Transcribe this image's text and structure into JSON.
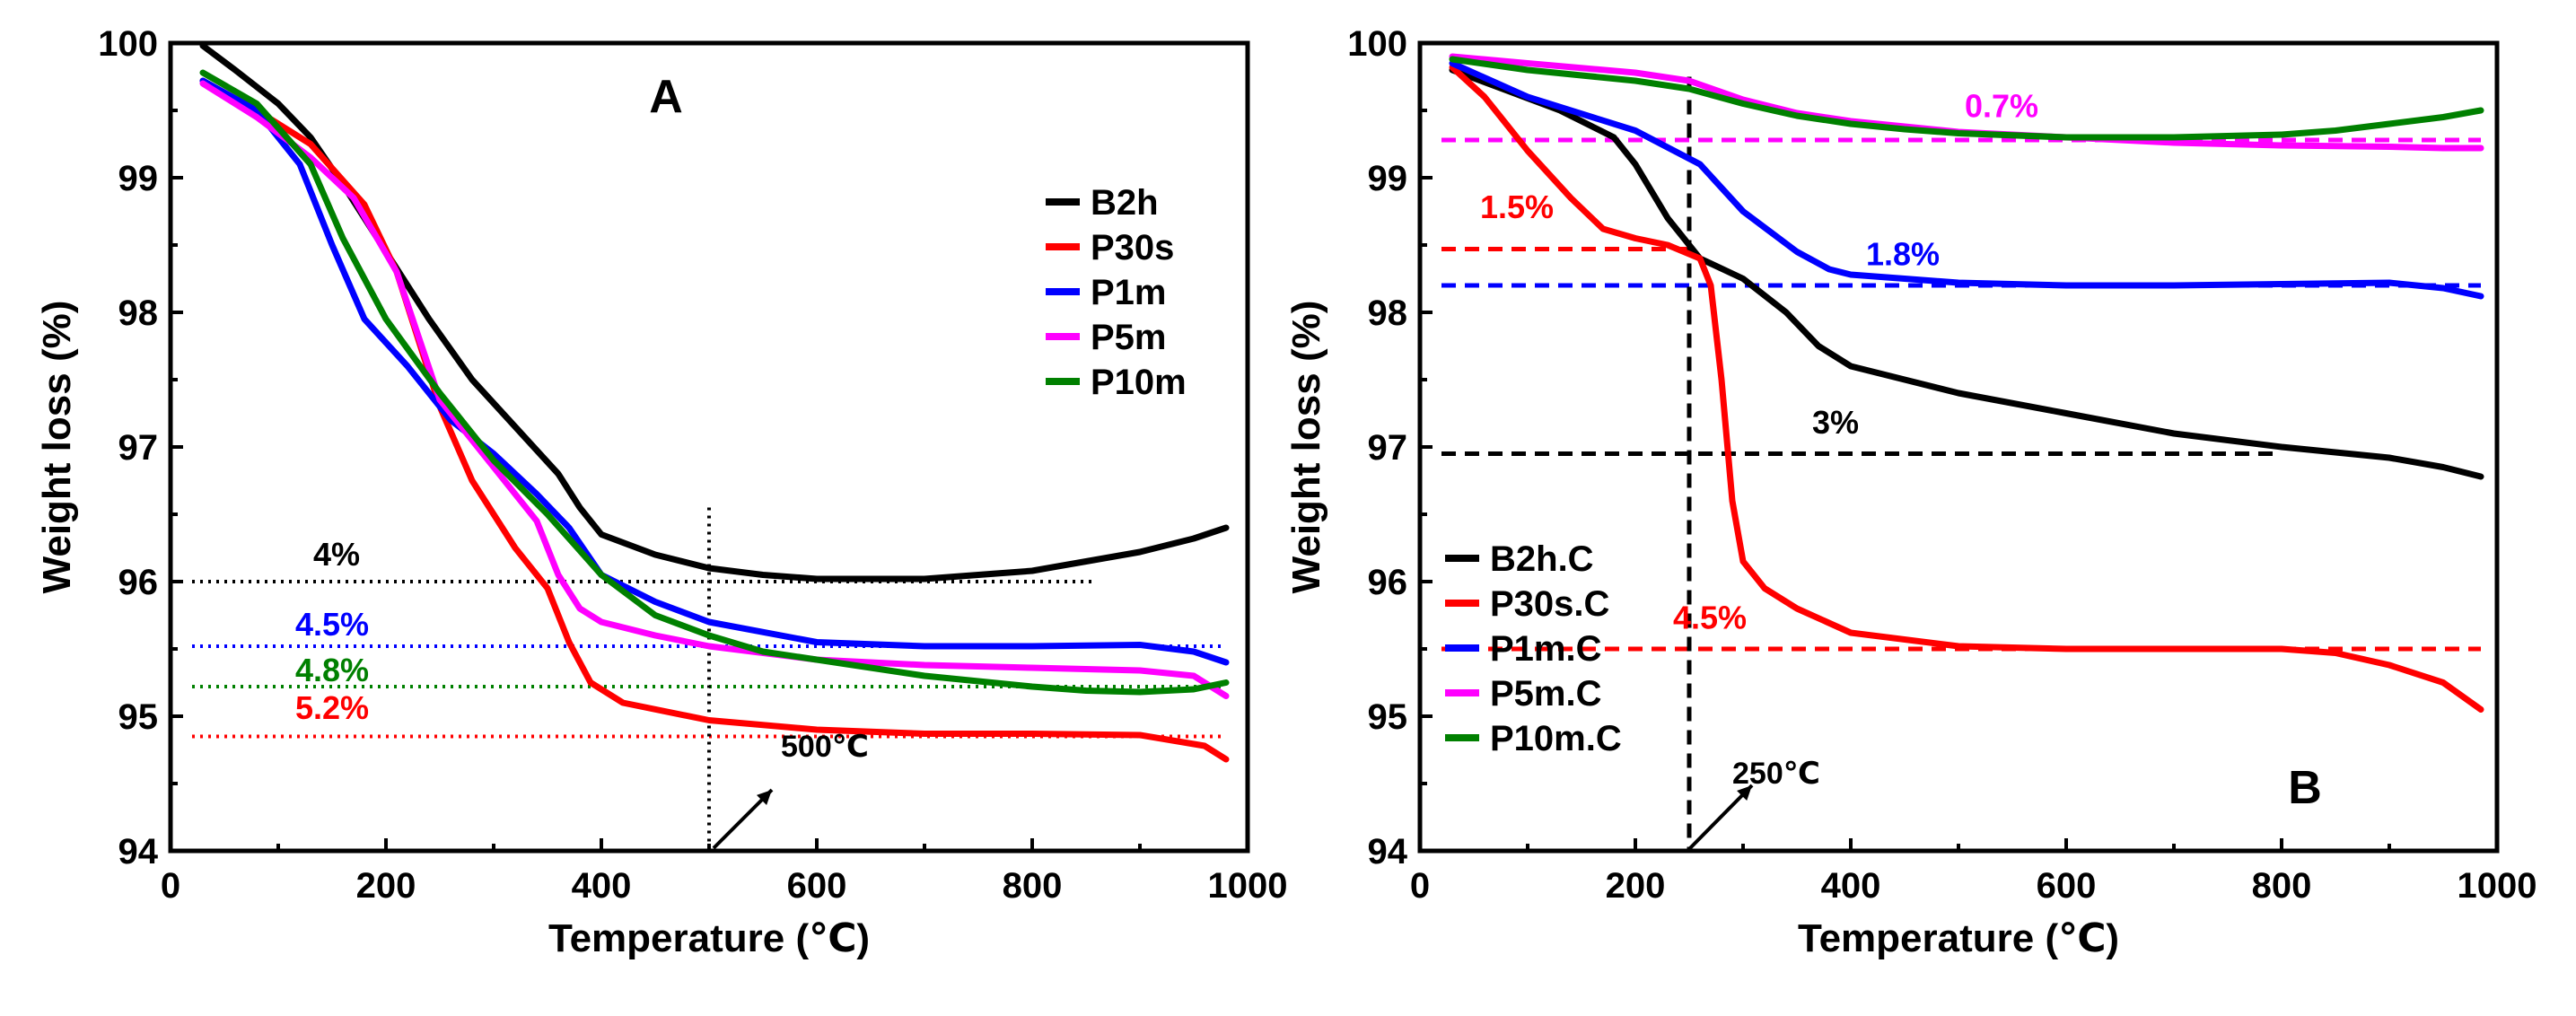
{
  "chart_data": [
    {
      "type": "line",
      "panel_label": "A",
      "xlabel": "Temperature (℃)",
      "ylabel": "Weight loss (%)",
      "xlim": [
        0,
        1000
      ],
      "ylim": [
        94,
        100
      ],
      "xticks": [
        "0",
        "200",
        "400",
        "600",
        "800",
        "1000"
      ],
      "yticks": [
        "94",
        "95",
        "96",
        "97",
        "98",
        "99",
        "100"
      ],
      "legend_position": "top-right",
      "series": [
        {
          "name": "B2h",
          "color": "#000000",
          "x": [
            30,
            60,
            100,
            130,
            160,
            200,
            240,
            280,
            320,
            360,
            380,
            400,
            450,
            500,
            550,
            600,
            650,
            700,
            750,
            800,
            850,
            900,
            950,
            980
          ],
          "y": [
            99.98,
            99.8,
            99.55,
            99.3,
            98.95,
            98.45,
            97.95,
            97.5,
            97.15,
            96.8,
            96.55,
            96.35,
            96.2,
            96.1,
            96.05,
            96.02,
            96.02,
            96.02,
            96.05,
            96.08,
            96.15,
            96.22,
            96.32,
            96.4
          ]
        },
        {
          "name": "P30s",
          "color": "#ff0000",
          "x": [
            30,
            80,
            130,
            180,
            210,
            250,
            280,
            320,
            350,
            370,
            390,
            420,
            500,
            600,
            700,
            800,
            900,
            960,
            980
          ],
          "y": [
            99.72,
            99.5,
            99.25,
            98.8,
            98.3,
            97.3,
            96.75,
            96.25,
            95.95,
            95.55,
            95.25,
            95.1,
            94.97,
            94.9,
            94.87,
            94.87,
            94.86,
            94.78,
            94.68
          ]
        },
        {
          "name": "P1m",
          "color": "#0000ff",
          "x": [
            30,
            80,
            120,
            150,
            180,
            220,
            260,
            300,
            340,
            370,
            400,
            450,
            500,
            600,
            700,
            800,
            900,
            950,
            980
          ],
          "y": [
            99.72,
            99.5,
            99.1,
            98.5,
            97.95,
            97.6,
            97.2,
            96.95,
            96.65,
            96.4,
            96.05,
            95.85,
            95.7,
            95.55,
            95.52,
            95.52,
            95.53,
            95.48,
            95.4
          ]
        },
        {
          "name": "P5m",
          "color": "#ff00ff",
          "x": [
            30,
            80,
            130,
            170,
            210,
            250,
            300,
            340,
            360,
            380,
            400,
            450,
            500,
            600,
            700,
            800,
            900,
            950,
            980
          ],
          "y": [
            99.7,
            99.45,
            99.15,
            98.85,
            98.3,
            97.35,
            96.85,
            96.45,
            96.05,
            95.8,
            95.7,
            95.6,
            95.52,
            95.42,
            95.38,
            95.36,
            95.34,
            95.3,
            95.15
          ]
        },
        {
          "name": "P10m",
          "color": "#008000",
          "x": [
            30,
            80,
            130,
            160,
            200,
            250,
            300,
            350,
            400,
            450,
            500,
            550,
            600,
            700,
            800,
            850,
            900,
            950,
            980
          ],
          "y": [
            99.78,
            99.55,
            99.1,
            98.55,
            97.95,
            97.4,
            96.9,
            96.5,
            96.05,
            95.75,
            95.6,
            95.48,
            95.42,
            95.3,
            95.22,
            95.19,
            95.18,
            95.2,
            95.25
          ]
        }
      ],
      "reference_lines": [
        {
          "label": "4%",
          "y": 96.0,
          "color": "#000000",
          "x_start": 20,
          "x_end": 860
        },
        {
          "label": "4.5%",
          "y": 95.52,
          "color": "#0000ff",
          "x_start": 20,
          "x_end": 980
        },
        {
          "label": "4.8%",
          "y": 95.22,
          "color": "#008000",
          "x_start": 20,
          "x_end": 980
        },
        {
          "label": "5.2%",
          "y": 94.85,
          "color": "#ff0000",
          "x_start": 20,
          "x_end": 980
        }
      ],
      "vertical_line_x": 500,
      "temperature_annotation": "500℃"
    },
    {
      "type": "line",
      "panel_label": "B",
      "xlabel": "Temperature (℃)",
      "ylabel": "Weight loss (%)",
      "xlim": [
        0,
        1000
      ],
      "ylim": [
        94,
        100
      ],
      "xticks": [
        "0",
        "200",
        "400",
        "600",
        "800",
        "1000"
      ],
      "yticks": [
        "94",
        "95",
        "96",
        "97",
        "98",
        "99",
        "100"
      ],
      "legend_position": "bottom-left",
      "series": [
        {
          "name": "B2h.C",
          "color": "#000000",
          "x": [
            30,
            80,
            130,
            180,
            200,
            230,
            260,
            300,
            340,
            370,
            400,
            450,
            500,
            600,
            700,
            800,
            900,
            950,
            985
          ],
          "y": [
            99.8,
            99.65,
            99.5,
            99.3,
            99.1,
            98.7,
            98.4,
            98.25,
            98.0,
            97.75,
            97.6,
            97.5,
            97.4,
            97.25,
            97.1,
            97.0,
            96.92,
            96.85,
            96.78
          ]
        },
        {
          "name": "P30s.C",
          "color": "#ff0000",
          "x": [
            30,
            60,
            100,
            140,
            170,
            200,
            230,
            260,
            270,
            280,
            290,
            300,
            320,
            350,
            400,
            500,
            600,
            700,
            800,
            850,
            900,
            950,
            985
          ],
          "y": [
            99.82,
            99.6,
            99.2,
            98.85,
            98.62,
            98.55,
            98.5,
            98.4,
            98.2,
            97.5,
            96.6,
            96.15,
            95.95,
            95.8,
            95.62,
            95.52,
            95.5,
            95.5,
            95.5,
            95.47,
            95.38,
            95.25,
            95.05
          ]
        },
        {
          "name": "P1m.C",
          "color": "#0000ff",
          "x": [
            30,
            100,
            200,
            260,
            300,
            350,
            380,
            400,
            450,
            500,
            600,
            700,
            800,
            900,
            950,
            985
          ],
          "y": [
            99.85,
            99.6,
            99.35,
            99.1,
            98.75,
            98.45,
            98.32,
            98.28,
            98.25,
            98.22,
            98.2,
            98.2,
            98.21,
            98.22,
            98.18,
            98.12
          ]
        },
        {
          "name": "P5m.C",
          "color": "#ff00ff",
          "x": [
            30,
            100,
            200,
            250,
            300,
            350,
            400,
            450,
            500,
            550,
            600,
            700,
            800,
            900,
            950,
            985
          ],
          "y": [
            99.9,
            99.85,
            99.78,
            99.72,
            99.58,
            99.48,
            99.42,
            99.38,
            99.34,
            99.32,
            99.3,
            99.26,
            99.24,
            99.23,
            99.22,
            99.22
          ]
        },
        {
          "name": "P10m.C",
          "color": "#008000",
          "x": [
            30,
            100,
            200,
            250,
            300,
            350,
            400,
            450,
            500,
            600,
            700,
            800,
            850,
            900,
            950,
            985
          ],
          "y": [
            99.88,
            99.8,
            99.72,
            99.66,
            99.55,
            99.46,
            99.4,
            99.36,
            99.33,
            99.3,
            99.3,
            99.32,
            99.35,
            99.4,
            99.45,
            99.5
          ]
        }
      ],
      "reference_lines": [
        {
          "label": "0.7%",
          "y": 99.28,
          "color": "#ff00ff",
          "x_start": 20,
          "x_end": 985
        },
        {
          "label": "1.5%",
          "y": 98.47,
          "color": "#ff0000",
          "x_start": 20,
          "x_end": 250
        },
        {
          "label": "1.8%",
          "y": 98.2,
          "color": "#0000ff",
          "x_start": 20,
          "x_end": 985
        },
        {
          "label": "3%",
          "y": 96.95,
          "color": "#000000",
          "x_start": 20,
          "x_end": 800
        },
        {
          "label": "4.5%",
          "y": 95.5,
          "color": "#ff0000",
          "x_start": 20,
          "x_end": 985
        }
      ],
      "vertical_line_x": 250,
      "temperature_annotation": "250℃"
    }
  ]
}
